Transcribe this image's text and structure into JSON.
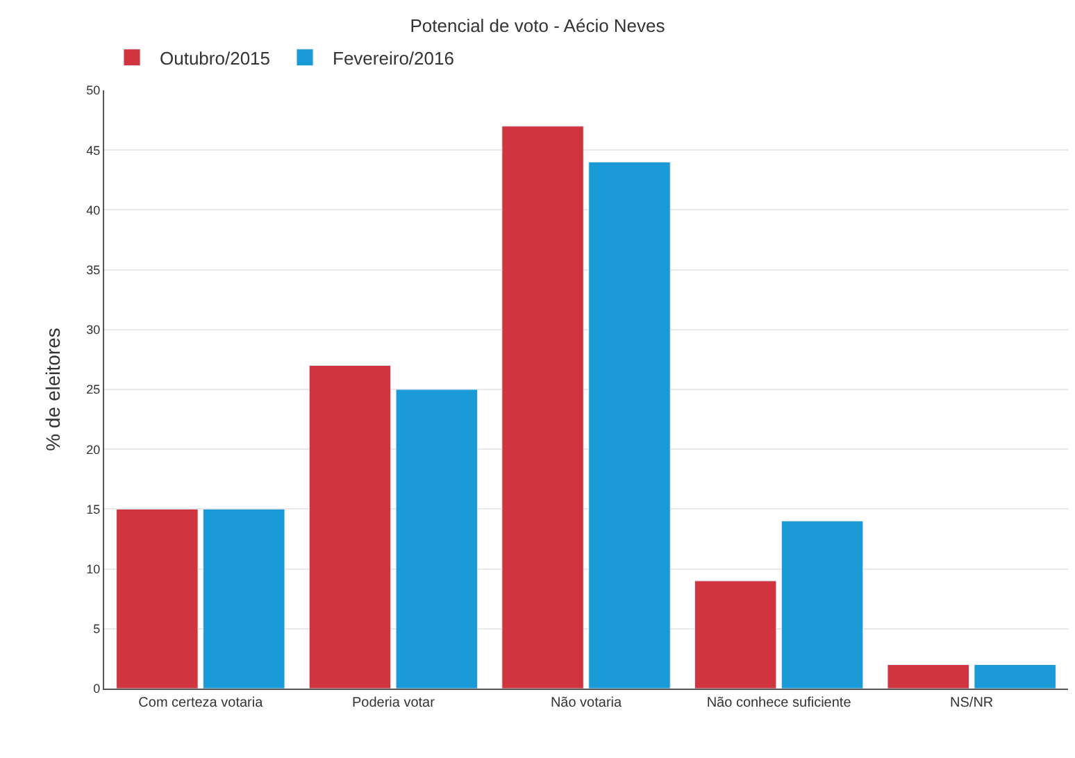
{
  "chart_data": {
    "type": "bar",
    "title": "Potencial de voto - Aécio Neves",
    "ylabel": "% de eleitores",
    "categories": [
      "Com certeza votaria",
      "Poderia votar",
      "Não votaria",
      "Não conhece suficiente",
      "NS/NR"
    ],
    "series": [
      {
        "name": "Outubro/2015",
        "color": "#d0343f",
        "values": [
          15,
          27,
          47,
          9,
          2
        ]
      },
      {
        "name": "Fevereiro/2016",
        "color": "#1a9ad6",
        "values": [
          15,
          25,
          44,
          14,
          2
        ]
      }
    ],
    "ylim": [
      0,
      50
    ],
    "yticks": [
      0,
      5,
      10,
      15,
      20,
      25,
      30,
      35,
      40,
      45,
      50
    ],
    "grid": "y",
    "legend": "top left"
  }
}
